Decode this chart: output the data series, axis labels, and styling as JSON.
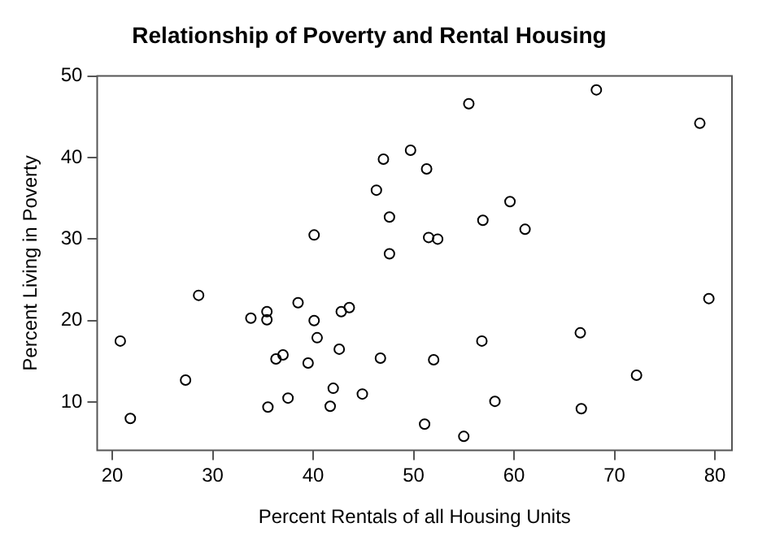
{
  "chart_data": {
    "type": "scatter",
    "title": "Relationship of Poverty and Rental Housing",
    "xlabel": "Percent Rentals of all Housing Units",
    "ylabel": "Percent Living in Poverty",
    "x": [
      20.8,
      21.8,
      27.3,
      28.6,
      33.8,
      35.4,
      35.4,
      35.5,
      36.3,
      37,
      37.5,
      38.5,
      39.5,
      40.1,
      40.1,
      40.4,
      41.7,
      42,
      42.6,
      42.8,
      43.6,
      44.9,
      46.3,
      46.7,
      47,
      47.6,
      47.6,
      49.7,
      51.1,
      51.3,
      51.5,
      52,
      52.4,
      55,
      55.5,
      56.8,
      56.9,
      58.1,
      59.6,
      61.1,
      66.6,
      66.7,
      68.2,
      72.2,
      78.5,
      79.4
    ],
    "series": [
      {
        "color": "#000000",
        "values": [
          17.5,
          8,
          12.7,
          23.1,
          20.3,
          21.1,
          20.1,
          9.4,
          15.3,
          15.8,
          10.5,
          22.2,
          14.8,
          30.5,
          20,
          17.9,
          9.5,
          11.7,
          16.5,
          21.1,
          21.6,
          11,
          36,
          15.4,
          39.8,
          28.2,
          32.7,
          40.9,
          7.3,
          38.6,
          30.2,
          15.2,
          30,
          5.8,
          46.6,
          17.5,
          32.3,
          10.1,
          34.6,
          31.2,
          18.5,
          9.2,
          48.3,
          13.3,
          44.2,
          22.7
        ]
      }
    ],
    "xlim": [
      18.5,
      81.7
    ],
    "ylim": [
      4.1,
      50
    ],
    "xticks": [
      20,
      30,
      40,
      50,
      60,
      70,
      80
    ],
    "yticks": [
      10,
      20,
      30,
      40,
      50
    ],
    "marker": "circle",
    "grid": false,
    "legend": false
  }
}
